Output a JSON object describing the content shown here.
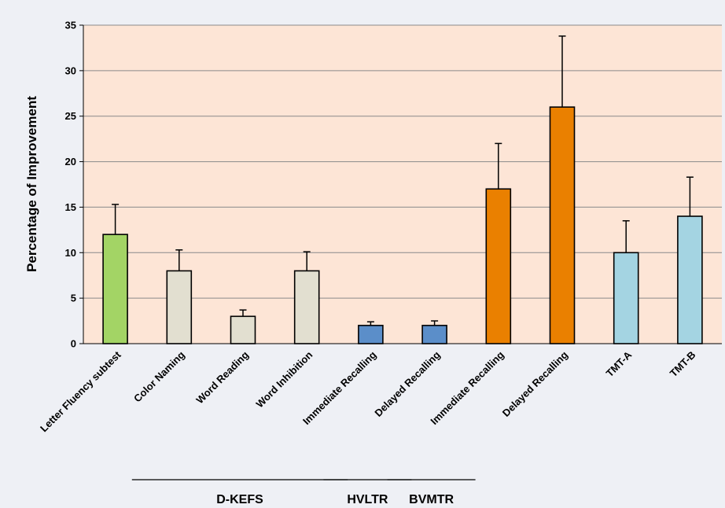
{
  "chart_data": {
    "type": "bar",
    "title": "",
    "xlabel": "",
    "ylabel": "Percentage of Improvement",
    "ylim": [
      0,
      35
    ],
    "yticks": [
      0,
      5,
      10,
      15,
      20,
      25,
      30,
      35
    ],
    "grid": true,
    "legend": "none",
    "plot_background": "#fde5d6",
    "categories": [
      "Letter Fluency subtest",
      "Color Naming",
      "Word Reading",
      "Word Inhibition",
      "Immediate Recalling",
      "Delayed Recalling",
      "Immediate Recalling",
      "Delayed Recalling",
      "TMT-A",
      "TMT-B"
    ],
    "values": [
      12,
      8,
      3,
      8,
      2,
      2,
      17,
      26,
      10,
      14
    ],
    "error_upper": [
      15.3,
      10.3,
      3.7,
      10.1,
      2.4,
      2.5,
      22.0,
      33.8,
      13.5,
      18.3
    ],
    "bar_colors": [
      "#a3d465",
      "#e2dfd0",
      "#e2dfd0",
      "#e2dfd0",
      "#5b8ec9",
      "#5b8ec9",
      "#ea8000",
      "#ea8000",
      "#a4d4e2",
      "#a4d4e2"
    ],
    "groups": [
      {
        "label": "D-KEFS",
        "first": 1,
        "last": 3
      },
      {
        "label": "HVLTR",
        "first": 4,
        "last": 4
      },
      {
        "label": "BVMTR",
        "first": 5,
        "last": 5
      }
    ]
  }
}
